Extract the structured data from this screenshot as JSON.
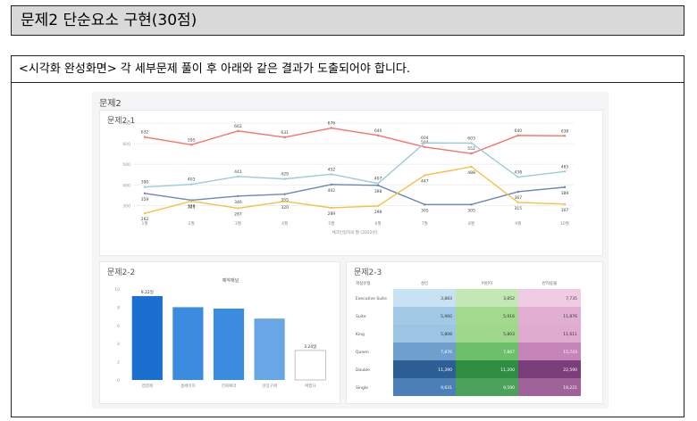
{
  "header": {
    "title": "문제2 단순요소 구현(30점)"
  },
  "instruction": "<시각화 완성화면> 각 세부문제 풀이 후 아래와 같은 결과가 도출되어야 합니다.",
  "dashboard": {
    "title": "문제2",
    "chart1_title": "문제2-1",
    "chart2_title": "문제2-2",
    "chart3_title": "문제2-3",
    "chart2_legend": "예약채널"
  },
  "chart_data": [
    {
      "type": "line",
      "xlabel": "체크인일자의 월 [2022년]",
      "x": [
        "1월",
        "2월",
        "3월",
        "4월",
        "5월",
        "6월",
        "7월",
        "8월",
        "9월",
        "10월"
      ],
      "ylim": [
        250,
        700
      ],
      "yticks": [
        300,
        400,
        500,
        600,
        700
      ],
      "series": [
        {
          "color": "#f4736b",
          "values": [
            632,
            595,
            662,
            631,
            676,
            640,
            584,
            552,
            640,
            638
          ],
          "labels": [
            "632",
            "595",
            "662",
            "631",
            "676",
            "640",
            "584",
            "552",
            "640",
            "638"
          ],
          "extra": [
            {
              "x": 7,
              "y": 604,
              "label": "604"
            },
            {
              "x": 8,
              "y": 603,
              "label": "603"
            }
          ]
        },
        {
          "color": "#9ccbd8",
          "values": [
            390,
            403,
            441,
            429,
            452,
            407,
            604,
            603,
            438,
            465
          ],
          "labels": [
            "390",
            "403",
            "441",
            "429",
            "452",
            "407",
            "",
            "",
            "438",
            "465"
          ]
        },
        {
          "color": "#6b86b8",
          "values": [
            359,
            326,
            346,
            355,
            402,
            398,
            305,
            305,
            367,
            389
          ],
          "labels": [
            "359",
            "326",
            "346",
            "355",
            "402",
            "398",
            "305",
            "305",
            "367",
            "389"
          ]
        },
        {
          "color": "#f7be4a",
          "values": [
            262,
            321,
            287,
            320,
            289,
            298,
            447,
            488,
            315,
            307
          ],
          "labels": [
            "262",
            "321",
            "287",
            "320",
            "289",
            "298",
            "447",
            "488",
            "315",
            "307"
          ]
        }
      ]
    },
    {
      "type": "bar",
      "title": "예약채널",
      "categories": [
        "앱결제",
        "홈페이지",
        "전화예약",
        "현장구매",
        "여행사"
      ],
      "values": [
        9.22,
        8.0,
        7.85,
        6.75,
        3.24
      ],
      "data_labels": [
        "9.22일",
        "",
        "",
        "",
        "3.24일"
      ],
      "ylim": [
        0,
        10
      ],
      "yticks": [
        0,
        2,
        4,
        6,
        8,
        10
      ],
      "colors": [
        "#1a6fd1",
        "#3b8be0",
        "#3b8be0",
        "#69a6e6",
        "#ffffff"
      ]
    },
    {
      "type": "heatmap",
      "row_header": "객실유형",
      "columns": [
        "성인",
        "어린이",
        "반려동물"
      ],
      "rows": [
        "Executive Suite",
        "Suite",
        "King",
        "Queen",
        "Double",
        "Single"
      ],
      "values": [
        [
          "3,883",
          "3,852",
          "7,735"
        ],
        [
          "5,960",
          "5,916",
          "11,876"
        ],
        [
          "5,808",
          "5,803",
          "11,611"
        ],
        [
          "7,876",
          "7,867",
          "15,743"
        ],
        [
          "11,390",
          "11,200",
          "22,590"
        ],
        [
          "9,631",
          "9,590",
          "19,221"
        ]
      ],
      "colors": [
        [
          "#c7e3f3",
          "#c3e8b5",
          "#f0cce4"
        ],
        [
          "#a2c9e6",
          "#a3d98e",
          "#e0afd2"
        ],
        [
          "#9cc4e3",
          "#9fd78b",
          "#dfacd0"
        ],
        [
          "#6fa0cd",
          "#6cc06a",
          "#c585b8"
        ],
        [
          "#2d5f95",
          "#2f8d42",
          "#7a3f7b"
        ],
        [
          "#4c7fb5",
          "#4ba25a",
          "#a06399"
        ]
      ]
    }
  ]
}
